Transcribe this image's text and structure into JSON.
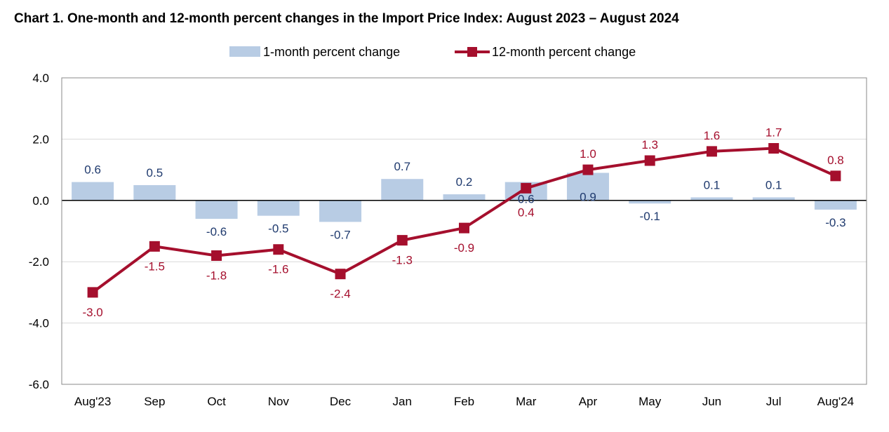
{
  "chart_data": {
    "type": "bar",
    "title": "Chart 1. One-month and 12-month percent changes in the Import Price Index: August 2023 – August 2024",
    "categories": [
      "Aug'23",
      "Sep",
      "Oct",
      "Nov",
      "Dec",
      "Jan",
      "Feb",
      "Mar",
      "Apr",
      "May",
      "Jun",
      "Jul",
      "Aug'24"
    ],
    "ylim": [
      -6.0,
      4.0
    ],
    "yticks": [
      "4.0",
      "2.0",
      "0.0",
      "-2.0",
      "-4.0",
      "-6.0"
    ],
    "grid": true,
    "legend_position": "top-center",
    "series": [
      {
        "name": "1-month percent change",
        "type": "bar",
        "color": "#b8cce4",
        "label_color": "#1f3a6e",
        "values": [
          0.6,
          0.5,
          -0.6,
          -0.5,
          -0.7,
          0.7,
          0.2,
          0.6,
          0.9,
          -0.1,
          0.1,
          0.1,
          -0.3
        ],
        "labels": [
          "0.6",
          "0.5",
          "-0.6",
          "-0.5",
          "-0.7",
          "0.7",
          "0.2",
          "0.6",
          "0.9",
          "-0.1",
          "0.1",
          "0.1",
          "-0.3"
        ]
      },
      {
        "name": "12-month percent change",
        "type": "line",
        "color": "#a50f2d",
        "label_color": "#a50f2d",
        "values": [
          -3.0,
          -1.5,
          -1.8,
          -1.6,
          -2.4,
          -1.3,
          -0.9,
          0.4,
          1.0,
          1.3,
          1.6,
          1.7,
          0.8
        ],
        "labels": [
          "-3.0",
          "-1.5",
          "-1.8",
          "-1.6",
          "-2.4",
          "-1.3",
          "-0.9",
          "0.4",
          "1.0",
          "1.3",
          "1.6",
          "1.7",
          "0.8"
        ]
      }
    ]
  }
}
